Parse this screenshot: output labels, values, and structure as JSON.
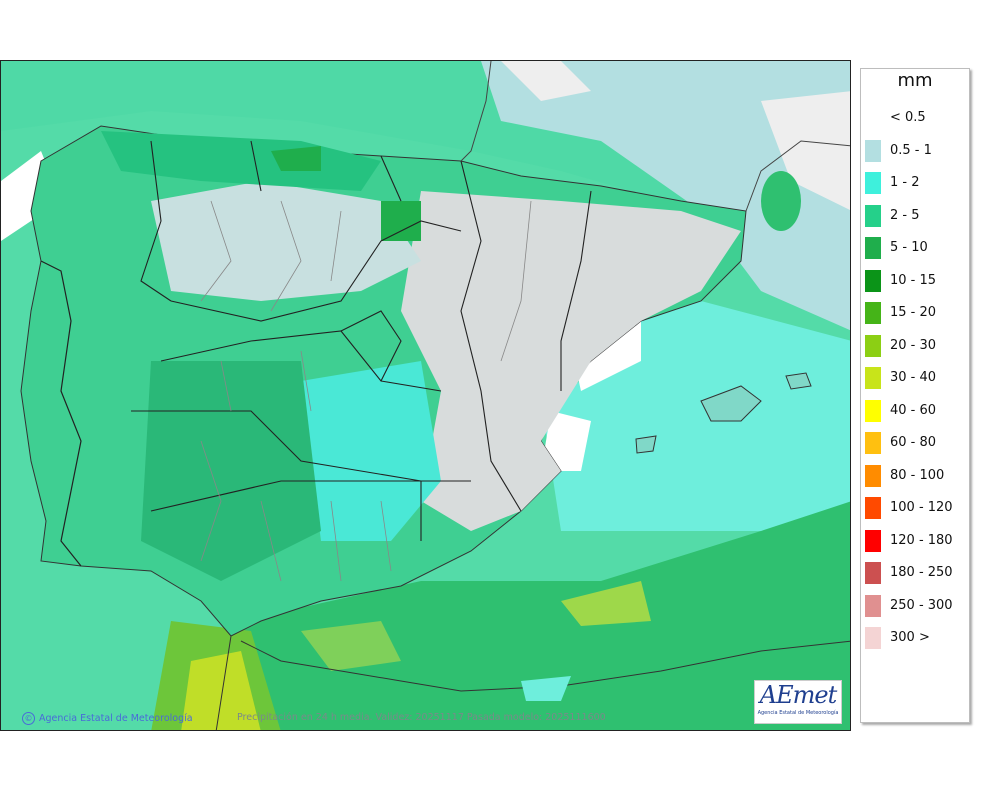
{
  "map": {
    "credit": "Agencia Estatal de Meteorología",
    "caption": "Precipitación en 24 h media. Validez: 20251117 Pasada modelo: 2025111600",
    "logo": {
      "wordmark": "AEmet",
      "subtitle": "Agencia Estatal de Meteorología"
    }
  },
  "legend": {
    "unit": "mm",
    "items": [
      {
        "label": "< 0.5",
        "color": "#ffffff"
      },
      {
        "label": "0.5 - 1",
        "color": "#b3dfe1"
      },
      {
        "label": "1 - 2",
        "color": "#3ef0dc"
      },
      {
        "label": "2 - 5",
        "color": "#25d08a"
      },
      {
        "label": "5 - 10",
        "color": "#1fae4c"
      },
      {
        "label": "10 - 15",
        "color": "#0b9418"
      },
      {
        "label": "15 - 20",
        "color": "#45b418"
      },
      {
        "label": "20 - 30",
        "color": "#8ccf14"
      },
      {
        "label": "30 - 40",
        "color": "#c8e41a"
      },
      {
        "label": "40 - 60",
        "color": "#ffff00"
      },
      {
        "label": "60 - 80",
        "color": "#ffc010"
      },
      {
        "label": "80 - 100",
        "color": "#ff8c00"
      },
      {
        "label": "100 - 120",
        "color": "#ff4a00"
      },
      {
        "label": "120 - 180",
        "color": "#ff0000"
      },
      {
        "label": "180 - 250",
        "color": "#cc5050"
      },
      {
        "label": "250 - 300",
        "color": "#e09090"
      },
      {
        "label": "300 >",
        "color": "#f4d4d4"
      }
    ]
  }
}
